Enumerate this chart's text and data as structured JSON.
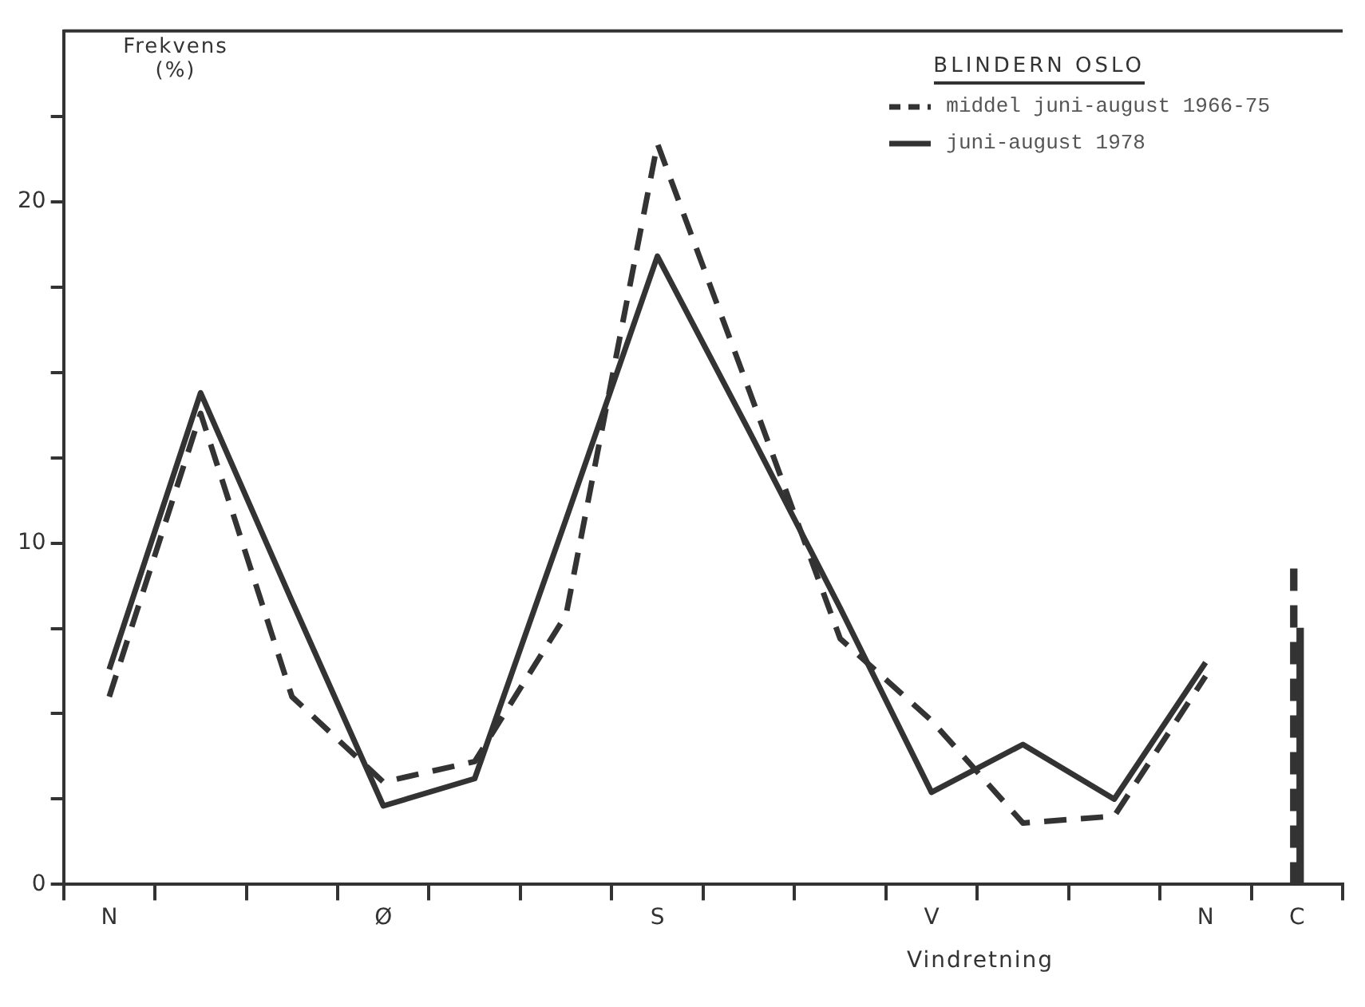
{
  "chart_data": {
    "type": "line",
    "legend_title": "BLINDERN OSLO",
    "ylabel": "Frekvens (%)",
    "xlabel": "Vindretning",
    "categories": [
      "N",
      null,
      null,
      "Ø",
      null,
      null,
      "S",
      null,
      null,
      "V",
      null,
      null,
      "N",
      "C"
    ],
    "series": [
      {
        "name": "middel juni-august 1966-75",
        "color": "#333333",
        "line_style": "dashed",
        "values": [
          5.5,
          13.8,
          5.5,
          3.0,
          3.6,
          7.9,
          21.7,
          14.5,
          7.2,
          4.8,
          1.8,
          2.0,
          6.1,
          null
        ]
      },
      {
        "name": "juni-august 1978",
        "color": "#333333",
        "line_style": "solid",
        "values": [
          6.3,
          14.4,
          8.3,
          2.3,
          3.1,
          10.7,
          18.4,
          13.3,
          8.1,
          2.7,
          4.1,
          2.5,
          6.5,
          null
        ]
      },
      {
        "type": "bar",
        "color": "#333333",
        "line_style": "dashed",
        "values": [
          null,
          null,
          null,
          null,
          null,
          null,
          null,
          null,
          null,
          null,
          null,
          null,
          null,
          9.3
        ]
      },
      {
        "type": "bar",
        "color": "#333333",
        "line_style": "solid",
        "values": [
          null,
          null,
          null,
          null,
          null,
          null,
          null,
          null,
          null,
          null,
          null,
          null,
          null,
          7.5
        ]
      }
    ],
    "ylim": [
      0,
      25
    ],
    "yticks": [
      0,
      {
        "value": 2.5,
        "label": null
      },
      {
        "value": 5,
        "label": null
      },
      {
        "value": 7.5,
        "label": null
      },
      10,
      {
        "value": 12.5,
        "label": null
      },
      {
        "value": 15,
        "label": null
      },
      {
        "value": 17.5,
        "label": null
      },
      20,
      {
        "value": 22.5,
        "label": null
      }
    ],
    "legend": "top right",
    "marker": "none",
    "grid": false
  }
}
